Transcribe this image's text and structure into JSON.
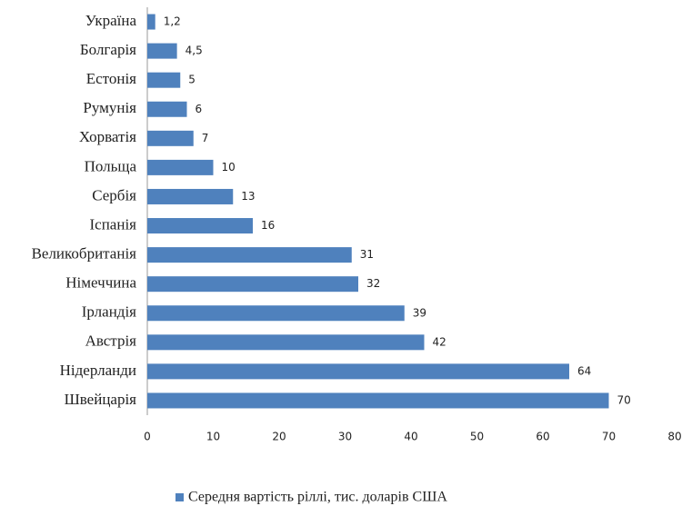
{
  "chart_data": {
    "type": "bar",
    "orientation": "horizontal",
    "categories": [
      "Україна",
      "Болгарія",
      "Естонія",
      "Румунія",
      "Хорватія",
      "Польща",
      "Сербія",
      "Іспанія",
      "Великобританія",
      "Німеччина",
      "Ірландія",
      "Австрія",
      "Нідерланди",
      "Швейцарія"
    ],
    "series": [
      {
        "name": "Середня вартість ріллі, тис. доларів США",
        "color": "#4f81bd",
        "values": [
          1.2,
          4.5,
          5,
          6,
          7,
          10,
          13,
          16,
          31,
          32,
          39,
          42,
          64,
          70
        ],
        "value_labels": [
          "1,2",
          "4,5",
          "5",
          "6",
          "7",
          "10",
          "13",
          "16",
          "31",
          "32",
          "39",
          "42",
          "64",
          "70"
        ]
      }
    ],
    "xlim": [
      0,
      80
    ],
    "xticks": [
      0,
      10,
      20,
      30,
      40,
      50,
      60,
      70,
      80
    ],
    "legend": "bottom"
  }
}
